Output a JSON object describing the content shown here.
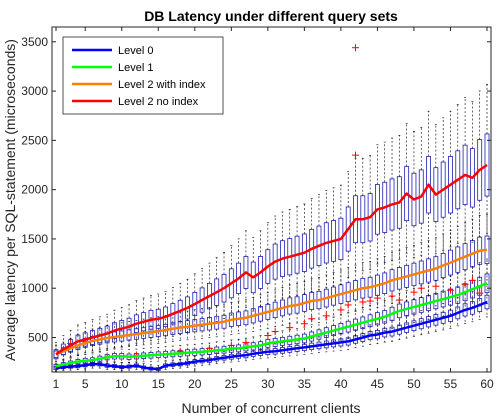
{
  "chart_data": {
    "type": "line",
    "title": "DB Latency under different query sets",
    "xlabel": "Number of concurrent clients",
    "ylabel": "Average latency per SQL-statement (microseconds)",
    "xlim": [
      1,
      60
    ],
    "ylim": [
      150,
      3650
    ],
    "xticks": [
      1,
      5,
      10,
      15,
      20,
      25,
      30,
      35,
      40,
      45,
      50,
      55,
      60
    ],
    "yticks": [
      500,
      1000,
      1500,
      2000,
      2500,
      3000,
      3500
    ],
    "grid": false,
    "legend_position": "top-left",
    "boxplot_color": "#1f1fb4",
    "outlier_color": "#ff0000",
    "series": [
      {
        "name": "Level 0",
        "color": "#0000ff",
        "x": [
          1,
          2,
          3,
          4,
          5,
          6,
          7,
          8,
          9,
          10,
          11,
          12,
          13,
          14,
          15,
          16,
          17,
          18,
          19,
          20,
          21,
          22,
          23,
          24,
          25,
          26,
          27,
          28,
          29,
          30,
          31,
          32,
          33,
          34,
          35,
          36,
          37,
          38,
          39,
          40,
          41,
          42,
          43,
          44,
          45,
          46,
          47,
          48,
          49,
          50,
          51,
          52,
          53,
          54,
          55,
          56,
          57,
          58,
          59,
          60
        ],
        "values": [
          190,
          200,
          205,
          210,
          220,
          230,
          230,
          215,
          210,
          200,
          205,
          215,
          195,
          185,
          180,
          215,
          225,
          230,
          240,
          255,
          265,
          270,
          285,
          295,
          305,
          315,
          320,
          335,
          345,
          355,
          360,
          370,
          380,
          390,
          400,
          410,
          420,
          430,
          440,
          450,
          460,
          480,
          500,
          520,
          530,
          550,
          560,
          580,
          600,
          620,
          640,
          660,
          680,
          700,
          720,
          750,
          780,
          800,
          830,
          860
        ]
      },
      {
        "name": "Level 1",
        "color": "#00ff00",
        "x": [
          1,
          2,
          3,
          4,
          5,
          6,
          7,
          8,
          9,
          10,
          11,
          12,
          13,
          14,
          15,
          16,
          17,
          18,
          19,
          20,
          21,
          22,
          23,
          24,
          25,
          26,
          27,
          28,
          29,
          30,
          31,
          32,
          33,
          34,
          35,
          36,
          37,
          38,
          39,
          40,
          41,
          42,
          43,
          44,
          45,
          46,
          47,
          48,
          49,
          50,
          51,
          52,
          53,
          54,
          55,
          56,
          57,
          58,
          59,
          60
        ],
        "values": [
          210,
          225,
          240,
          255,
          265,
          270,
          285,
          300,
          310,
          310,
          305,
          310,
          315,
          320,
          325,
          330,
          335,
          340,
          345,
          350,
          355,
          360,
          370,
          375,
          385,
          390,
          400,
          410,
          420,
          440,
          450,
          460,
          470,
          480,
          490,
          510,
          530,
          550,
          570,
          590,
          610,
          630,
          650,
          670,
          690,
          710,
          740,
          770,
          790,
          810,
          830,
          850,
          870,
          890,
          910,
          930,
          960,
          990,
          1020,
          1050
        ]
      },
      {
        "name": "Level 2 with index",
        "color": "#ff8000",
        "x": [
          1,
          2,
          3,
          4,
          5,
          6,
          7,
          8,
          9,
          10,
          11,
          12,
          13,
          14,
          15,
          16,
          17,
          18,
          19,
          20,
          21,
          22,
          23,
          24,
          25,
          26,
          27,
          28,
          29,
          30,
          31,
          32,
          33,
          34,
          35,
          36,
          37,
          38,
          39,
          40,
          41,
          42,
          43,
          44,
          45,
          46,
          47,
          48,
          49,
          50,
          51,
          52,
          53,
          54,
          55,
          56,
          57,
          58,
          59,
          60
        ],
        "values": [
          330,
          360,
          390,
          420,
          445,
          465,
          480,
          495,
          505,
          515,
          525,
          535,
          545,
          555,
          565,
          575,
          590,
          600,
          610,
          620,
          630,
          640,
          650,
          660,
          680,
          690,
          700,
          720,
          740,
          760,
          780,
          800,
          820,
          830,
          850,
          870,
          880,
          900,
          920,
          940,
          960,
          980,
          1000,
          1010,
          1030,
          1050,
          1080,
          1100,
          1120,
          1140,
          1160,
          1180,
          1200,
          1230,
          1260,
          1290,
          1320,
          1350,
          1380,
          1390
        ]
      },
      {
        "name": "Level 2 no index",
        "color": "#ff0000",
        "x": [
          1,
          2,
          3,
          4,
          5,
          6,
          7,
          8,
          9,
          10,
          11,
          12,
          13,
          14,
          15,
          16,
          17,
          18,
          19,
          20,
          21,
          22,
          23,
          24,
          25,
          26,
          27,
          28,
          29,
          30,
          31,
          32,
          33,
          34,
          35,
          36,
          37,
          38,
          39,
          40,
          41,
          42,
          43,
          44,
          45,
          46,
          47,
          48,
          49,
          50,
          51,
          52,
          53,
          54,
          55,
          56,
          57,
          58,
          59,
          60
        ],
        "values": [
          330,
          380,
          420,
          460,
          480,
          500,
          520,
          540,
          570,
          590,
          610,
          640,
          660,
          680,
          690,
          710,
          740,
          770,
          800,
          840,
          880,
          920,
          960,
          1000,
          1050,
          1100,
          1160,
          1110,
          1160,
          1220,
          1270,
          1300,
          1320,
          1340,
          1360,
          1400,
          1430,
          1460,
          1480,
          1500,
          1600,
          1700,
          1700,
          1720,
          1800,
          1820,
          1850,
          1870,
          1960,
          1900,
          1930,
          2050,
          1950,
          2000,
          2050,
          2100,
          2150,
          2120,
          2200,
          2250
        ]
      }
    ],
    "outliers": [
      {
        "x": 42,
        "y": 3440
      },
      {
        "x": 42,
        "y": 2350
      },
      {
        "x": 3,
        "y": 440
      },
      {
        "x": 5,
        "y": 460
      },
      {
        "x": 8,
        "y": 300
      },
      {
        "x": 12,
        "y": 320
      },
      {
        "x": 18,
        "y": 360
      },
      {
        "x": 22,
        "y": 390
      },
      {
        "x": 25,
        "y": 420
      },
      {
        "x": 27,
        "y": 450
      },
      {
        "x": 30,
        "y": 520
      },
      {
        "x": 31,
        "y": 560
      },
      {
        "x": 33,
        "y": 600
      },
      {
        "x": 35,
        "y": 640
      },
      {
        "x": 36,
        "y": 690
      },
      {
        "x": 38,
        "y": 720
      },
      {
        "x": 40,
        "y": 780
      },
      {
        "x": 41,
        "y": 830
      },
      {
        "x": 43,
        "y": 860
      },
      {
        "x": 44,
        "y": 870
      },
      {
        "x": 45,
        "y": 900
      },
      {
        "x": 47,
        "y": 920
      },
      {
        "x": 48,
        "y": 880
      },
      {
        "x": 50,
        "y": 960
      },
      {
        "x": 51,
        "y": 1000
      },
      {
        "x": 53,
        "y": 1020
      },
      {
        "x": 55,
        "y": 980
      },
      {
        "x": 57,
        "y": 1040
      },
      {
        "x": 58,
        "y": 1080
      },
      {
        "x": 59,
        "y": 950
      }
    ]
  }
}
